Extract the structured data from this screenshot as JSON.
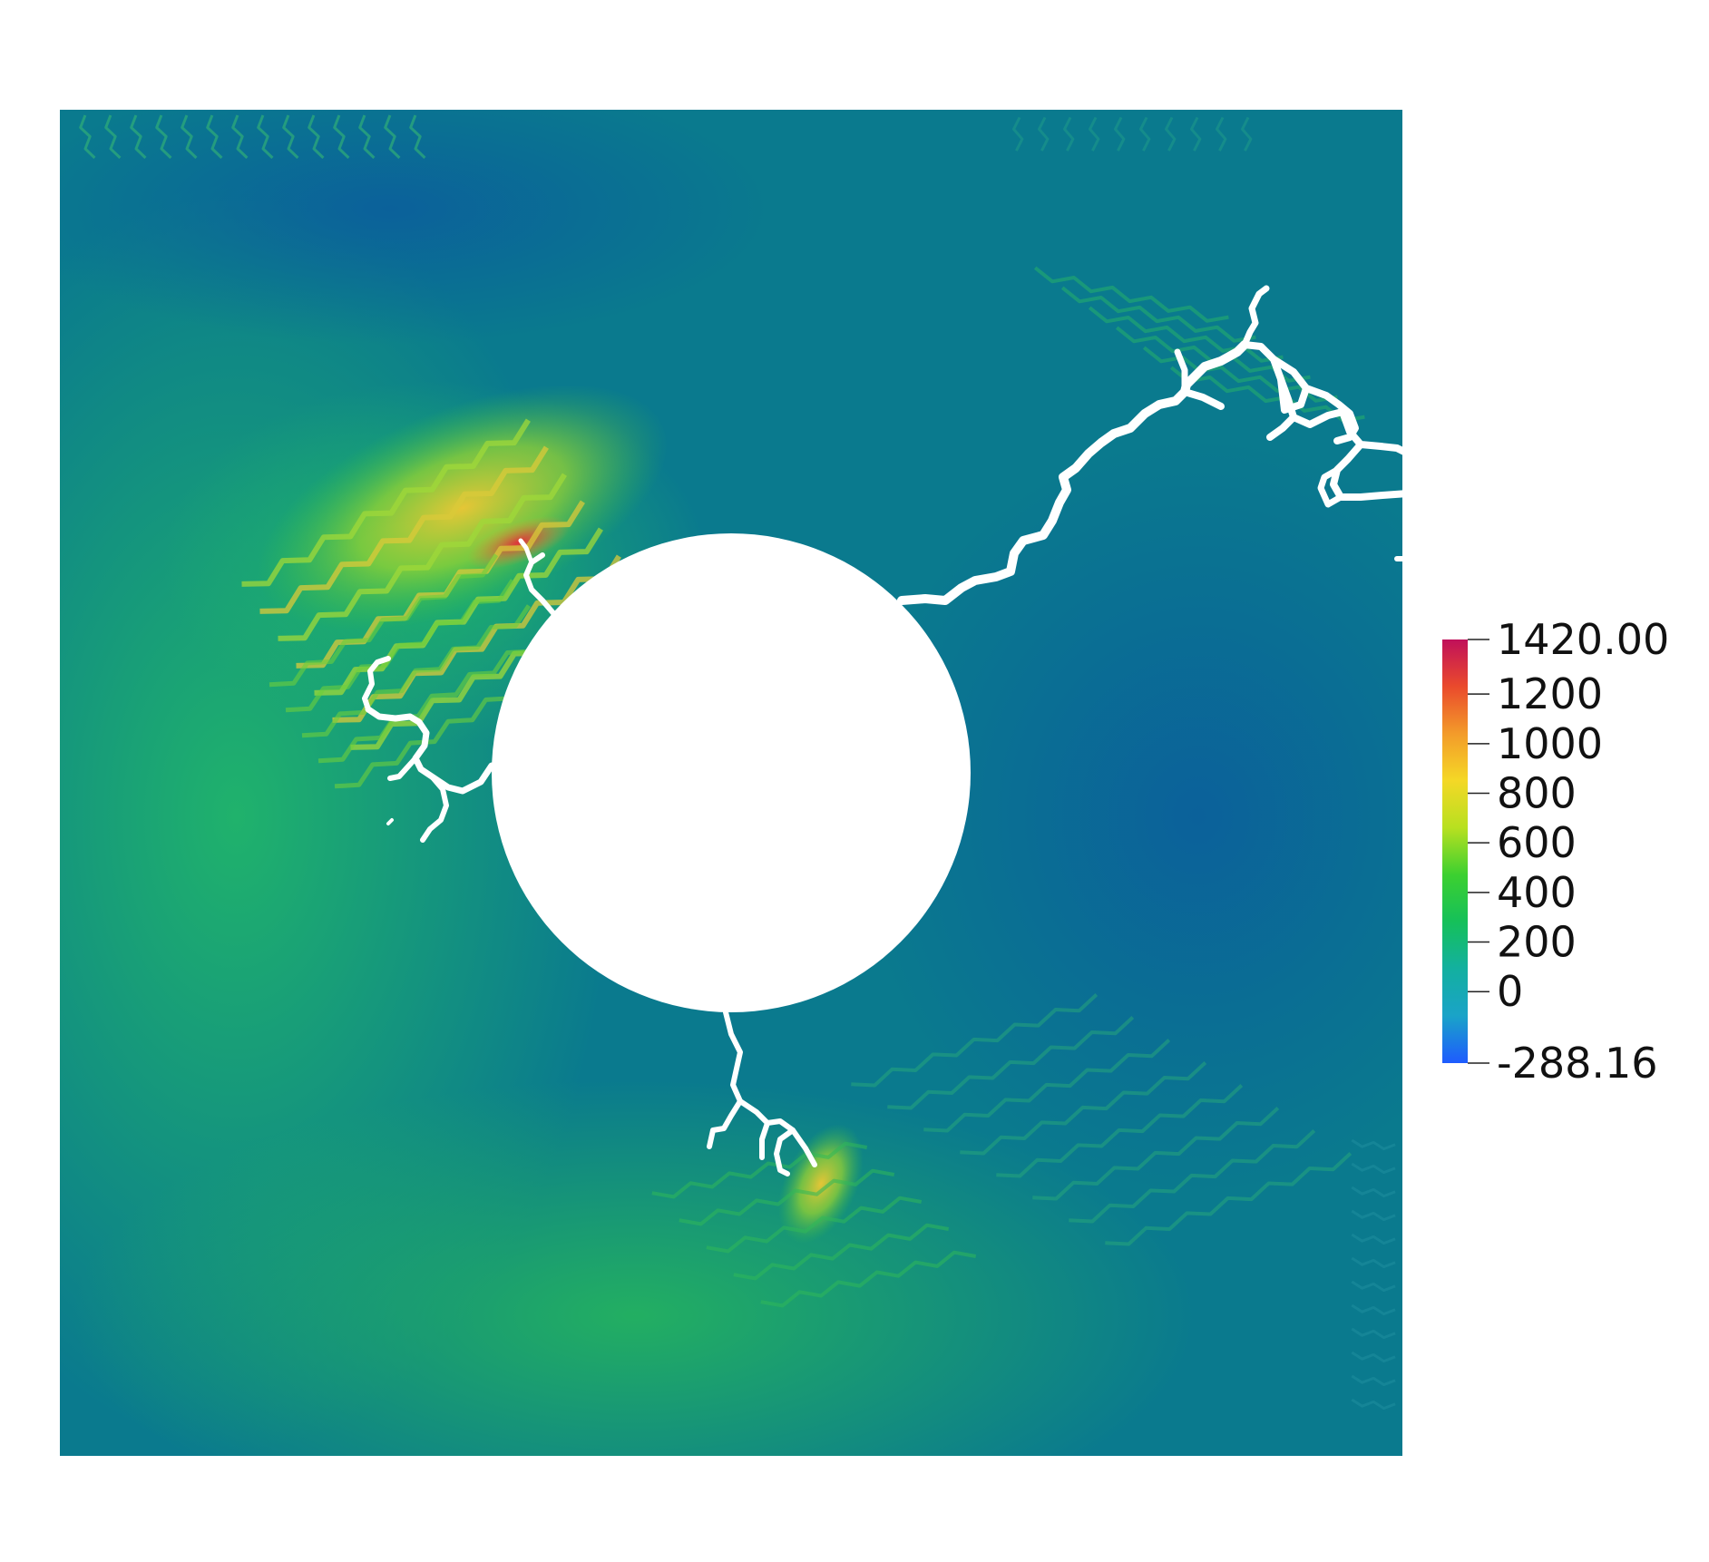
{
  "colorbar": {
    "max_label": "1420.00",
    "min_label": "-288.16",
    "range": [
      -288.16,
      1420.0
    ],
    "ticks": [
      {
        "value": 1420.0,
        "label": "1420.00"
      },
      {
        "value": 1200,
        "label": "1200"
      },
      {
        "value": 1000,
        "label": "1000"
      },
      {
        "value": 800,
        "label": "800"
      },
      {
        "value": 600,
        "label": "600"
      },
      {
        "value": 400,
        "label": "400"
      },
      {
        "value": 200,
        "label": "200"
      },
      {
        "value": 0,
        "label": "0"
      },
      {
        "value": -288.16,
        "label": "-288.16"
      }
    ],
    "colormap": [
      "#1e5bff",
      "#1aa3c8",
      "#13b0a0",
      "#15c05a",
      "#3cd030",
      "#b8e020",
      "#f4d826",
      "#f39b2a",
      "#ea4a2c",
      "#c0105a"
    ]
  },
  "field": {
    "background_color": "#0a7a8e",
    "hole_color": "#ffffff",
    "crack_color": "#ffffff"
  }
}
